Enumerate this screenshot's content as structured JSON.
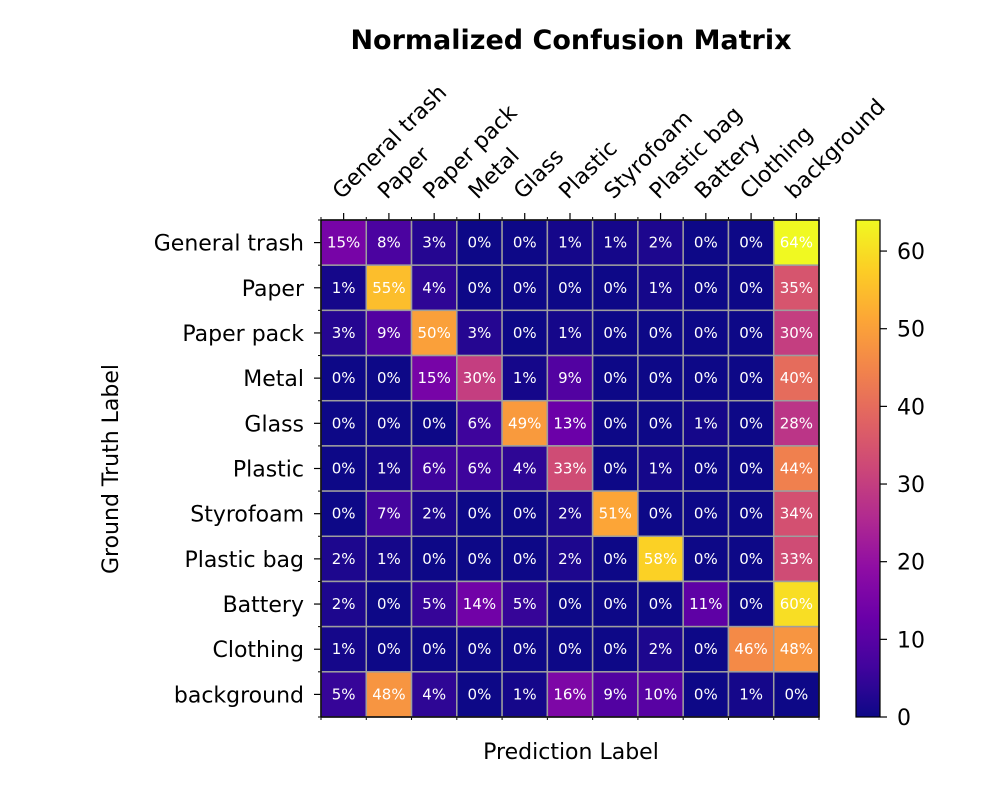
{
  "chart_data": {
    "type": "heatmap",
    "title": "Normalized Confusion Matrix",
    "xlabel": "Prediction Label",
    "ylabel": "Ground Truth Label",
    "x_categories": [
      "General trash",
      "Paper",
      "Paper pack",
      "Metal",
      "Glass",
      "Plastic",
      "Styrofoam",
      "Plastic bag",
      "Battery",
      "Clothing",
      "background"
    ],
    "y_categories": [
      "General trash",
      "Paper",
      "Paper pack",
      "Metal",
      "Glass",
      "Plastic",
      "Styrofoam",
      "Plastic bag",
      "Battery",
      "Clothing",
      "background"
    ],
    "values": [
      [
        15,
        8,
        3,
        0,
        0,
        1,
        1,
        2,
        0,
        0,
        64
      ],
      [
        1,
        55,
        4,
        0,
        0,
        0,
        0,
        1,
        0,
        0,
        35
      ],
      [
        3,
        9,
        50,
        3,
        0,
        1,
        0,
        0,
        0,
        0,
        30
      ],
      [
        0,
        0,
        15,
        30,
        1,
        9,
        0,
        0,
        0,
        0,
        40
      ],
      [
        0,
        0,
        0,
        6,
        49,
        13,
        0,
        0,
        1,
        0,
        28
      ],
      [
        0,
        1,
        6,
        6,
        4,
        33,
        0,
        1,
        0,
        0,
        44
      ],
      [
        0,
        7,
        2,
        0,
        0,
        2,
        51,
        0,
        0,
        0,
        34
      ],
      [
        2,
        1,
        0,
        0,
        0,
        2,
        0,
        58,
        0,
        0,
        33
      ],
      [
        2,
        0,
        5,
        14,
        5,
        0,
        0,
        0,
        11,
        0,
        60
      ],
      [
        1,
        0,
        0,
        0,
        0,
        0,
        0,
        2,
        0,
        46,
        48
      ],
      [
        5,
        48,
        4,
        0,
        1,
        16,
        9,
        10,
        0,
        1,
        0
      ]
    ],
    "value_suffix": "%",
    "colormap": "plasma",
    "colorbar_range": [
      0,
      64
    ],
    "colorbar_ticks": [
      0,
      10,
      20,
      30,
      40,
      50,
      60
    ]
  }
}
